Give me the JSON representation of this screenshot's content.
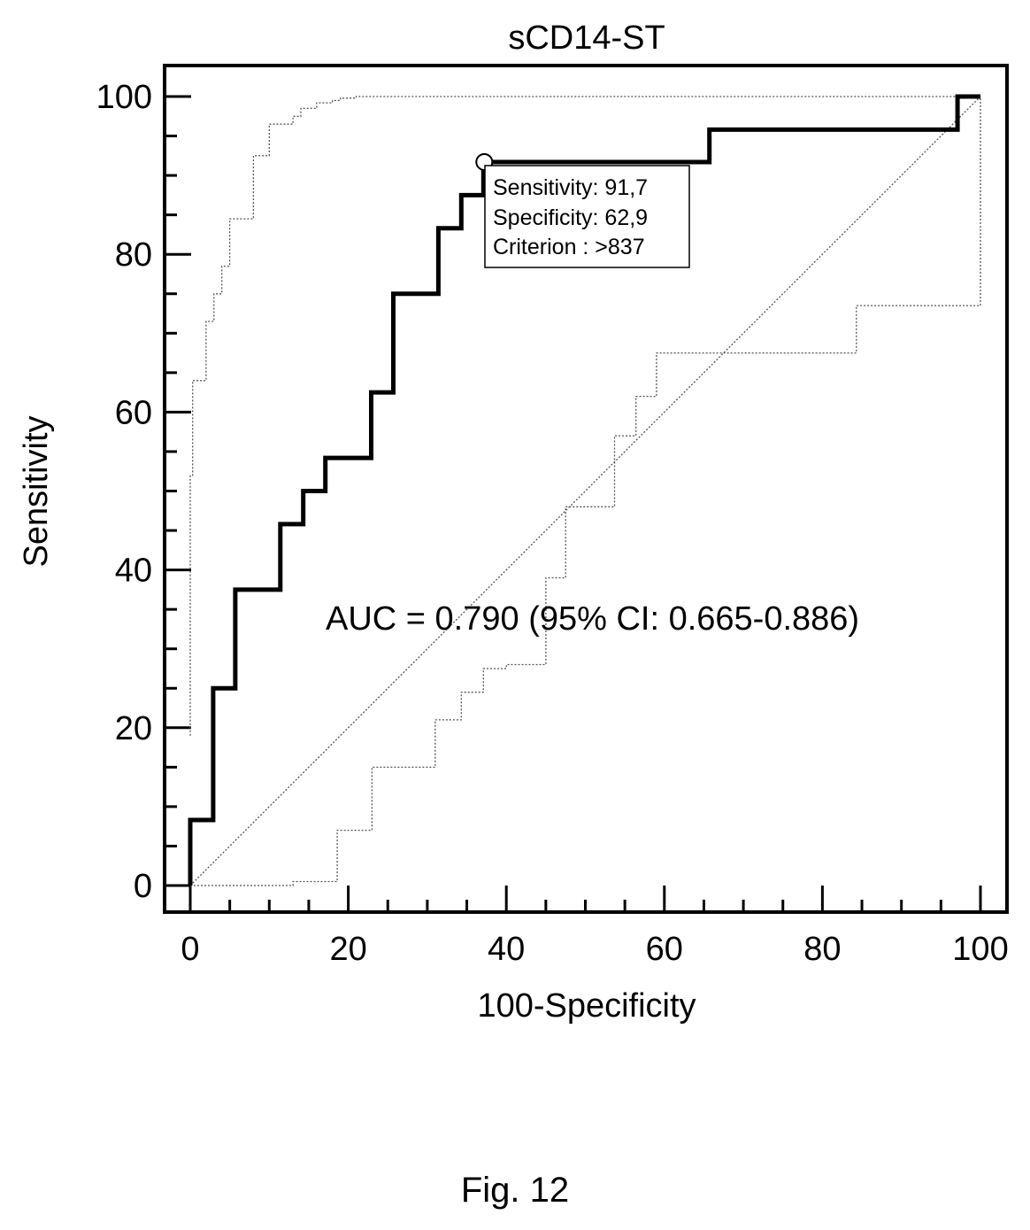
{
  "chart_data": {
    "type": "line",
    "title": "sCD14-ST",
    "xlabel": "100-Specificity",
    "ylabel": "Sensitivity",
    "xlim": [
      0,
      100
    ],
    "ylim": [
      0,
      100
    ],
    "xticks": [
      "0",
      "20",
      "40",
      "60",
      "80",
      "100"
    ],
    "yticks": [
      "0",
      "20",
      "40",
      "60",
      "80",
      "100"
    ],
    "grid": false,
    "series": [
      {
        "role": "roc-curve",
        "style": "thick-solid",
        "x": [
          0,
          0,
          2.9,
          2.9,
          5.7,
          5.7,
          11.4,
          11.4,
          14.3,
          14.3,
          17.1,
          17.1,
          22.9,
          22.9,
          25.7,
          25.7,
          31.4,
          31.4,
          34.3,
          34.3,
          37.1,
          37.1,
          65.7,
          65.7,
          97.1,
          97.1,
          100
        ],
        "y": [
          0,
          8.3,
          8.3,
          25.0,
          25.0,
          37.5,
          37.5,
          45.8,
          45.8,
          50.0,
          50.0,
          54.2,
          54.2,
          62.5,
          62.5,
          75.0,
          75.0,
          83.3,
          83.3,
          87.5,
          87.5,
          91.7,
          91.7,
          95.8,
          95.8,
          100,
          100
        ]
      },
      {
        "role": "ci-upper",
        "style": "dotted",
        "x": [
          0,
          0,
          0.3,
          0.3,
          2,
          2,
          3,
          3,
          4,
          4,
          5,
          5,
          8,
          8,
          10,
          10,
          13,
          13,
          14,
          14,
          16,
          16,
          18,
          18,
          19,
          19,
          21,
          21,
          25,
          25,
          45,
          60,
          80,
          100
        ],
        "y": [
          19,
          52,
          52,
          64,
          64,
          71.5,
          71.5,
          75,
          75,
          78.5,
          78.5,
          84.5,
          84.5,
          92.5,
          92.5,
          96.5,
          96.5,
          97.5,
          97.5,
          98.5,
          98.5,
          99.2,
          99.2,
          99.5,
          99.5,
          99.8,
          99.8,
          100,
          100,
          100,
          100,
          100,
          100,
          100
        ]
      },
      {
        "role": "ci-lower",
        "style": "dotted",
        "x": [
          0,
          13,
          13,
          18.6,
          18.6,
          23,
          23,
          31,
          31,
          34.3,
          34.3,
          37.1,
          37.1,
          40,
          40,
          45,
          45,
          47.5,
          47.5,
          53.7,
          53.7,
          56.4,
          56.4,
          59,
          59,
          84.3,
          84.3,
          100,
          100
        ],
        "y": [
          0,
          0,
          0.5,
          0.5,
          7,
          7,
          15,
          15,
          21,
          21,
          24.5,
          24.5,
          27.5,
          27.5,
          28,
          28,
          39,
          39,
          48,
          48,
          57,
          57,
          62,
          62,
          67.5,
          67.5,
          73.5,
          73.5,
          100
        ]
      },
      {
        "role": "diagonal-reference",
        "style": "dotted",
        "x": [
          0,
          100
        ],
        "y": [
          0,
          100
        ]
      }
    ],
    "optimal_point": {
      "x": 37.1,
      "y": 91.7
    },
    "annotations": {
      "callout_lines": [
        "Sensitivity: 91,7",
        "Specificity: 62,9",
        "Criterion : >837"
      ],
      "auc_text": "AUC = 0.790 (95% CI: 0.665-0.886)"
    }
  },
  "caption": "Fig. 12"
}
